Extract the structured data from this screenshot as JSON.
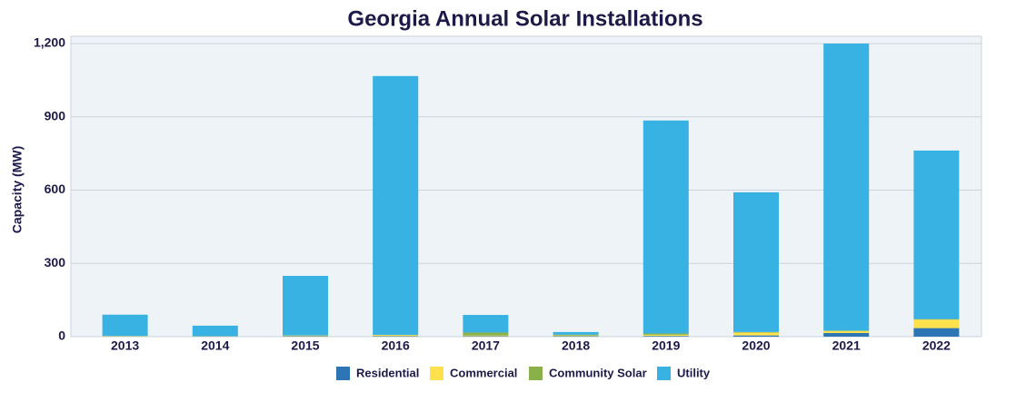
{
  "chart_data": {
    "type": "stacked-bar",
    "title": "Georgia Annual Solar Installations",
    "y_label": "Capacity (MW)",
    "categories": [
      "2013",
      "2014",
      "2015",
      "2016",
      "2017",
      "2018",
      "2019",
      "2020",
      "2021",
      "2022"
    ],
    "series": [
      {
        "name": "Residential",
        "color": "#2e75b6",
        "values": [
          1,
          1,
          2,
          2,
          2,
          2,
          3,
          5,
          15,
          35
        ]
      },
      {
        "name": "Commercial",
        "color": "#ffe14d",
        "values": [
          2,
          1,
          3,
          5,
          3,
          3,
          5,
          12,
          8,
          35
        ]
      },
      {
        "name": "Community Solar",
        "color": "#8ab04a",
        "values": [
          0,
          0,
          0,
          0,
          12,
          3,
          5,
          2,
          2,
          2
        ]
      },
      {
        "name": "Utility",
        "color": "#38b2e3",
        "values": [
          87,
          43,
          244,
          1060,
          72,
          11,
          872,
          572,
          1175,
          690
        ]
      }
    ],
    "ylim": [
      0,
      1200
    ],
    "yticks": [
      0,
      300,
      600,
      900,
      {
        "value": 1200,
        "label": "1,200"
      }
    ],
    "grid": true
  }
}
